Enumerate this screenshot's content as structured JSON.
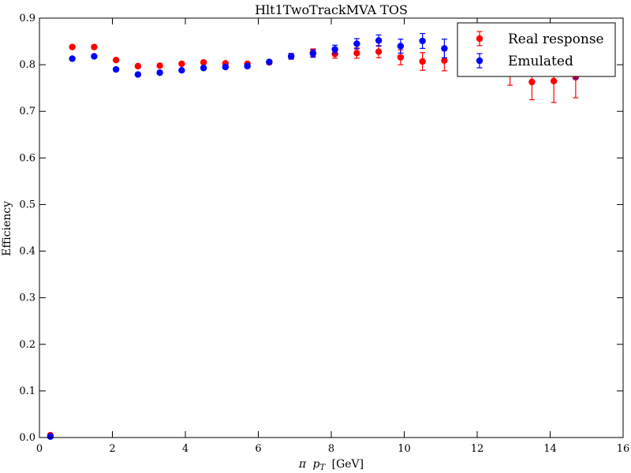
{
  "chart_data": {
    "type": "scatter",
    "title": "Hlt1TwoTrackMVA TOS",
    "xlabel": "π p_T [GeV]",
    "xlabel_parts": {
      "symbol": "π",
      "var": "p",
      "sub": "T",
      "unit": "[GeV]"
    },
    "ylabel": "Efficiency",
    "xlim": [
      0,
      16
    ],
    "ylim": [
      0.0,
      0.9
    ],
    "xticks": [
      0,
      2,
      4,
      6,
      8,
      10,
      12,
      14,
      16
    ],
    "yticks": [
      0.0,
      0.1,
      0.2,
      0.3,
      0.4,
      0.5,
      0.6,
      0.7,
      0.8,
      0.9
    ],
    "ytick_labels": [
      "0.0",
      "0.1",
      "0.2",
      "0.3",
      "0.4",
      "0.5",
      "0.6",
      "0.7",
      "0.8",
      "0.9"
    ],
    "grid": false,
    "legend_position": "top-right",
    "series": [
      {
        "name": "Real response",
        "color": "#ff0000",
        "points": [
          {
            "x": 0.3,
            "y": 0.005,
            "err": 0.002
          },
          {
            "x": 0.9,
            "y": 0.838,
            "err": 0.002
          },
          {
            "x": 1.5,
            "y": 0.838,
            "err": 0.002
          },
          {
            "x": 2.1,
            "y": 0.81,
            "err": 0.002
          },
          {
            "x": 2.7,
            "y": 0.797,
            "err": 0.002
          },
          {
            "x": 3.3,
            "y": 0.798,
            "err": 0.002
          },
          {
            "x": 3.9,
            "y": 0.802,
            "err": 0.002
          },
          {
            "x": 4.5,
            "y": 0.805,
            "err": 0.002
          },
          {
            "x": 5.1,
            "y": 0.803,
            "err": 0.002
          },
          {
            "x": 5.7,
            "y": 0.802,
            "err": 0.003
          },
          {
            "x": 6.3,
            "y": 0.805,
            "err": 0.004
          },
          {
            "x": 6.9,
            "y": 0.818,
            "err": 0.006
          },
          {
            "x": 7.5,
            "y": 0.826,
            "err": 0.008
          },
          {
            "x": 8.1,
            "y": 0.823,
            "err": 0.009
          },
          {
            "x": 8.7,
            "y": 0.825,
            "err": 0.011
          },
          {
            "x": 9.3,
            "y": 0.828,
            "err": 0.013
          },
          {
            "x": 9.9,
            "y": 0.816,
            "err": 0.016
          },
          {
            "x": 10.5,
            "y": 0.807,
            "err": 0.019
          },
          {
            "x": 11.1,
            "y": 0.809,
            "err": 0.022
          },
          {
            "x": 12.9,
            "y": 0.784,
            "err": 0.028
          },
          {
            "x": 13.5,
            "y": 0.763,
            "err": 0.038
          },
          {
            "x": 14.1,
            "y": 0.765,
            "err": 0.046
          },
          {
            "x": 14.7,
            "y": 0.773,
            "err": 0.044
          }
        ]
      },
      {
        "name": "Emulated",
        "color": "#0000ff",
        "points": [
          {
            "x": 0.3,
            "y": 0.002,
            "err": 0.001
          },
          {
            "x": 0.9,
            "y": 0.813,
            "err": 0.002
          },
          {
            "x": 1.5,
            "y": 0.818,
            "err": 0.002
          },
          {
            "x": 2.1,
            "y": 0.79,
            "err": 0.002
          },
          {
            "x": 2.7,
            "y": 0.779,
            "err": 0.002
          },
          {
            "x": 3.3,
            "y": 0.783,
            "err": 0.002
          },
          {
            "x": 3.9,
            "y": 0.788,
            "err": 0.002
          },
          {
            "x": 4.5,
            "y": 0.793,
            "err": 0.002
          },
          {
            "x": 5.1,
            "y": 0.795,
            "err": 0.003
          },
          {
            "x": 5.7,
            "y": 0.797,
            "err": 0.003
          },
          {
            "x": 6.3,
            "y": 0.806,
            "err": 0.004
          },
          {
            "x": 6.9,
            "y": 0.818,
            "err": 0.006
          },
          {
            "x": 7.5,
            "y": 0.824,
            "err": 0.008
          },
          {
            "x": 8.1,
            "y": 0.833,
            "err": 0.009
          },
          {
            "x": 8.7,
            "y": 0.845,
            "err": 0.011
          },
          {
            "x": 9.3,
            "y": 0.852,
            "err": 0.012
          },
          {
            "x": 9.9,
            "y": 0.84,
            "err": 0.015
          },
          {
            "x": 10.5,
            "y": 0.851,
            "err": 0.016
          },
          {
            "x": 11.1,
            "y": 0.835,
            "err": 0.02
          },
          {
            "x": 14.7,
            "y": 0.8,
            "err": 0.03
          }
        ]
      }
    ]
  }
}
